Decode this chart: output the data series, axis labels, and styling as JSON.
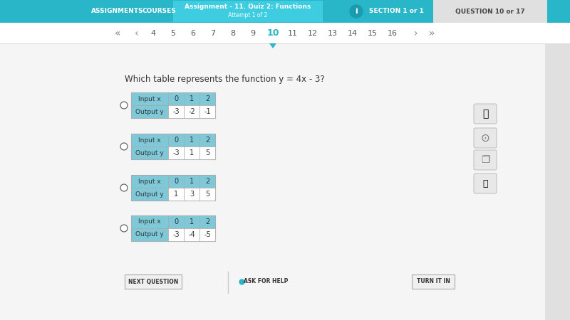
{
  "bg_color": "#f5f5f5",
  "header_bg": "#29b6c8",
  "header_text_color": "#ffffff",
  "nav_bg": "#29b6c8",
  "question_bg": "#e0e0e0",
  "question_active_bg": "#29b6c8",
  "question_text": "QUESTION 10 or 17",
  "title_text": "Assignment - 11. Quiz 2: Functions",
  "subtitle_text": "Attempt 1 of 2",
  "section_text": "SECTION 1 or 1",
  "assignments_text": "ASSIGNMENTS",
  "courses_text": "COURSES",
  "question_prompt": "Which table represents the function y = 4x - 3?",
  "nav_numbers": [
    "4",
    "5",
    "6",
    "7",
    "8",
    "9",
    "10",
    "11",
    "12",
    "13",
    "14",
    "15",
    "16"
  ],
  "table_header_bg": "#7ec8d8",
  "table_cell_bg": "#ffffff",
  "table_border": "#aaaaaa",
  "tables": [
    {
      "input": [
        0,
        1,
        2
      ],
      "output": [
        -3,
        -2,
        -1
      ]
    },
    {
      "input": [
        0,
        1,
        2
      ],
      "output": [
        -3,
        1,
        5
      ]
    },
    {
      "input": [
        0,
        1,
        2
      ],
      "output": [
        1,
        3,
        5
      ]
    },
    {
      "input": [
        0,
        1,
        2
      ],
      "output": [
        -3,
        -4,
        -5
      ]
    }
  ],
  "radio_color": "#555555",
  "button_bg": "#f0f0f0",
  "button_border": "#aaaaaa",
  "button_text_color": "#333333",
  "next_btn": "NEXT QUESTION",
  "ask_btn": "ASK FOR HELP",
  "turn_btn": "TURN IT IN",
  "sidebar_icon_bg": "#e8e8e8",
  "sidebar_icon_border": "#aaaaaa",
  "arrow_color": "#29b6c8"
}
